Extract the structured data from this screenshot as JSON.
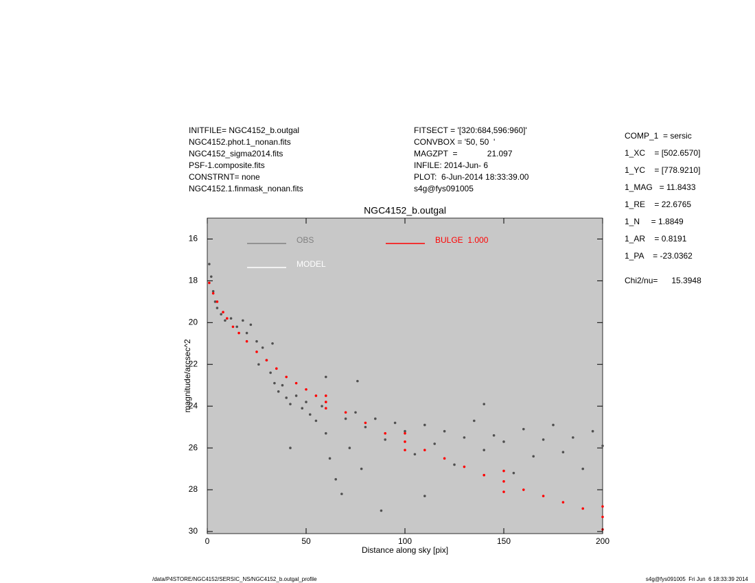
{
  "header": {
    "left": [
      "INITFILE= NGC4152_b.outgal",
      "NGC4152.phot.1_nonan.fits",
      "NGC4152_sigma2014.fits",
      "PSF-1.composite.fits",
      "CONSTRNT= none",
      "NGC4152.1.finmask_nonan.fits"
    ],
    "middle": [
      "FITSECT = '[320:684,596:960]'",
      "CONVBOX = '50, 50  '",
      "MAGZPT  =             21.097",
      "INFILE: 2014-Jun- 6",
      "PLOT:  6-Jun-2014 18:33:39.00",
      "s4g@fys091005"
    ],
    "right": [
      "COMP_1  = sersic",
      "1_XC    = [502.6570]",
      "1_YC    = [778.9210]",
      "1_MAG   = 11.8433",
      "1_RE    = 22.6765",
      "1_N     = 1.8849",
      "1_AR    = 0.8191",
      "1_PA    = -23.0362"
    ],
    "chi2": "Chi2/nu=      15.3948"
  },
  "footer": {
    "left": "/data/P4STORE/NGC4152/SERSIC_NS/NGC4152_b.outgal_profile",
    "right": "s4g@fys091005  Fri Jun  6 18:33:39 2014"
  },
  "chart_data": {
    "type": "scatter",
    "title": "NGC4152_b.outgal",
    "x_label": "Distance along sky [pix]",
    "y_label": "magnitude/arcsec^2",
    "xlim": [
      0,
      200
    ],
    "ylim": [
      30.1,
      15
    ],
    "xticks": [
      0,
      50,
      100,
      150,
      200
    ],
    "yticks": [
      16,
      18,
      20,
      22,
      24,
      26,
      28,
      30
    ],
    "background": "#c8c8c8",
    "legend": [
      {
        "label": "OBS",
        "color": "#808080"
      },
      {
        "label": "MODEL",
        "color": "#ffffff"
      },
      {
        "label": "BULGE  1.000",
        "color": "#ff0000"
      }
    ],
    "series": [
      {
        "name": "OBS",
        "color": "#505050",
        "x": [
          1,
          2,
          3,
          4,
          5,
          7,
          9,
          12,
          15,
          18,
          20,
          22,
          25,
          28,
          30,
          32,
          34,
          36,
          38,
          40,
          42,
          45,
          48,
          50,
          52,
          55,
          58,
          60,
          62,
          65,
          68,
          70,
          72,
          75,
          78,
          80,
          85,
          90,
          95,
          100,
          105,
          110,
          115,
          120,
          125,
          130,
          135,
          140,
          145,
          150,
          155,
          160,
          165,
          170,
          175,
          180,
          185,
          190,
          195,
          200,
          42,
          76,
          88,
          110,
          140,
          60,
          33,
          26
        ],
        "values": [
          17.2,
          17.8,
          18.5,
          19.0,
          19.3,
          19.6,
          19.9,
          19.8,
          20.2,
          19.9,
          20.5,
          20.1,
          20.9,
          21.2,
          21.8,
          22.4,
          22.9,
          23.3,
          23.0,
          23.6,
          23.9,
          23.5,
          24.1,
          23.8,
          24.4,
          24.7,
          24.0,
          25.3,
          26.5,
          27.5,
          28.2,
          24.6,
          26.0,
          24.3,
          27.0,
          25.0,
          24.6,
          25.6,
          24.8,
          25.2,
          26.3,
          24.9,
          25.8,
          25.2,
          26.8,
          25.5,
          24.7,
          26.1,
          25.4,
          25.7,
          27.2,
          25.1,
          26.4,
          25.6,
          24.9,
          26.2,
          25.5,
          27.0,
          25.2,
          25.9,
          26.0,
          22.8,
          29.0,
          28.3,
          23.9,
          22.6,
          21.0,
          22.0
        ]
      },
      {
        "name": "BULGE",
        "color": "#ff0000",
        "x": [
          1,
          3,
          5,
          8,
          10,
          13,
          16,
          20,
          25,
          30,
          35,
          40,
          45,
          50,
          55,
          60,
          70,
          80,
          90,
          100,
          110,
          120,
          130,
          140,
          150,
          160,
          170,
          180,
          190,
          200,
          60,
          60,
          100,
          100,
          150,
          150,
          200,
          200
        ],
        "values": [
          18.1,
          18.6,
          19.0,
          19.5,
          19.8,
          20.2,
          20.5,
          20.9,
          21.4,
          21.8,
          22.2,
          22.6,
          22.9,
          23.2,
          23.5,
          23.8,
          24.3,
          24.8,
          25.3,
          25.7,
          26.1,
          26.5,
          26.9,
          27.3,
          27.6,
          28.0,
          28.3,
          28.6,
          28.9,
          29.3,
          23.5,
          24.1,
          25.3,
          26.1,
          27.1,
          28.1,
          28.8,
          29.9
        ]
      }
    ]
  }
}
